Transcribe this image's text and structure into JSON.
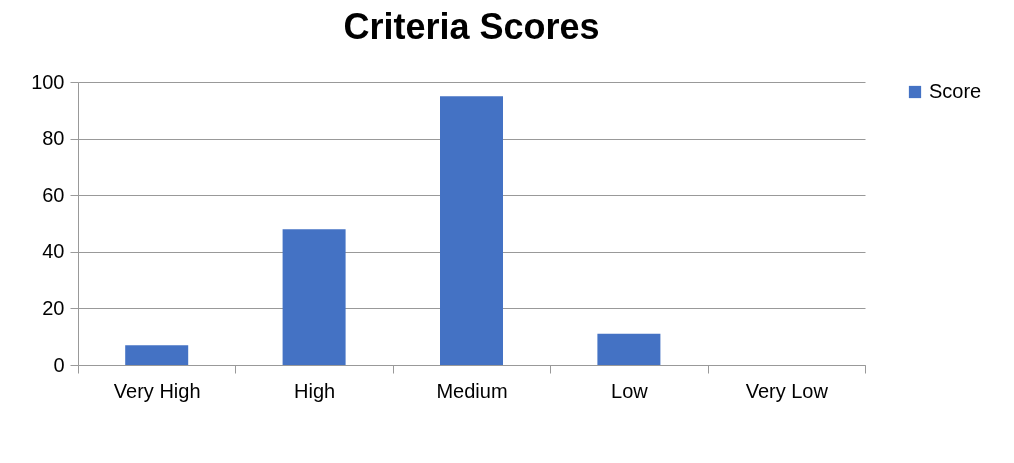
{
  "chart_data": {
    "type": "bar",
    "title": "Criteria Scores",
    "categories": [
      "Very High",
      "High",
      "Medium",
      "Low",
      "Very Low"
    ],
    "series": [
      {
        "name": "Score",
        "color": "#4472c4",
        "values": [
          7,
          48,
          95,
          11,
          0
        ]
      }
    ],
    "ylim": [
      0,
      100
    ],
    "yticks": [
      0,
      20,
      40,
      60,
      80,
      100
    ],
    "grid": "y",
    "legend": "right"
  }
}
